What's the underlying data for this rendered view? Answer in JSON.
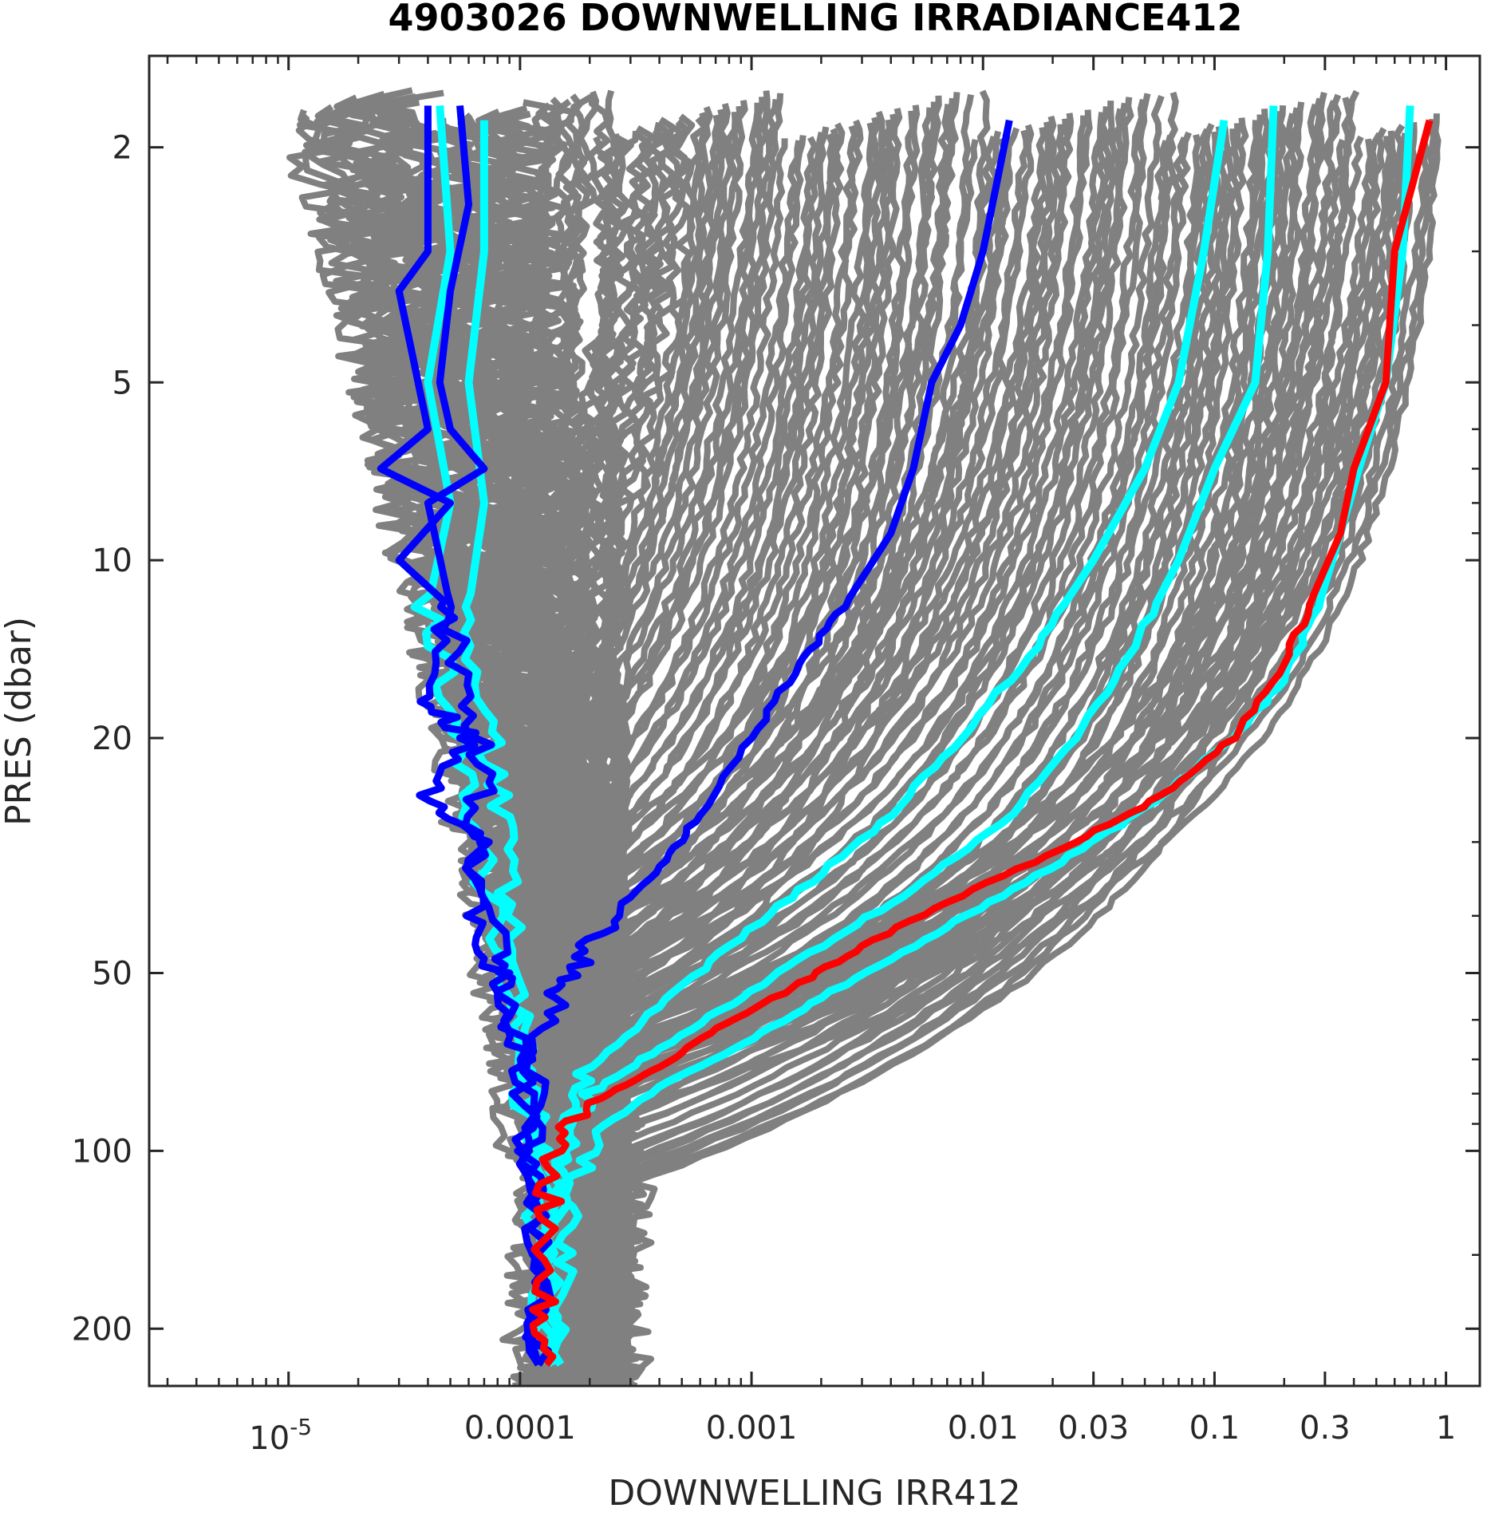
{
  "chart_data": {
    "type": "line",
    "title": "4903026  DOWNWELLING IRRADIANCE412",
    "xlabel": "DOWNWELLING IRR412",
    "ylabel": "PRES (dbar)",
    "x_scale": "log",
    "y_scale": "log",
    "y_reversed": true,
    "xlim": [
      2.5e-06,
      1.4
    ],
    "ylim": [
      1.4,
      250
    ],
    "grid": false,
    "x_ticks": [
      {
        "value": 1e-05,
        "base": "10",
        "exp": "-5"
      },
      {
        "value": 0.0001,
        "label": "0.0001"
      },
      {
        "value": 0.001,
        "label": "0.001"
      },
      {
        "value": 0.01,
        "label": "0.01"
      },
      {
        "value": 0.03,
        "label": "0.03"
      },
      {
        "value": 0.1,
        "label": "0.1"
      },
      {
        "value": 0.3,
        "label": "0.3"
      },
      {
        "value": 1,
        "label": "1"
      }
    ],
    "y_ticks": [
      {
        "value": 2,
        "label": "2"
      },
      {
        "value": 5,
        "label": "5"
      },
      {
        "value": 10,
        "label": "10"
      },
      {
        "value": 20,
        "label": "20"
      },
      {
        "value": 50,
        "label": "50"
      },
      {
        "value": 100,
        "label": "100"
      },
      {
        "value": 200,
        "label": "200"
      }
    ],
    "colors": {
      "background_profiles": "#808080",
      "selected_profiles": "#00ffff",
      "highlight_profile": "#0000ff",
      "current_profile": "#ff0000"
    },
    "series": [
      {
        "role": "current",
        "color": "#ff0000",
        "surface_value": 0.85,
        "deep_value": 0.00013,
        "points": [
          [
            0.85,
            1.8
          ],
          [
            0.6,
            3
          ],
          [
            0.55,
            5
          ],
          [
            0.4,
            7
          ],
          [
            0.35,
            9
          ],
          [
            0.28,
            11
          ],
          [
            0.2,
            15
          ],
          [
            0.12,
            20
          ],
          [
            0.06,
            25
          ],
          [
            0.025,
            30
          ],
          [
            0.008,
            37
          ],
          [
            0.003,
            45
          ],
          [
            0.0015,
            53
          ],
          [
            0.0007,
            62
          ],
          [
            0.0004,
            72
          ],
          [
            0.0002,
            83
          ],
          [
            0.00014,
            100
          ],
          [
            0.00013,
            130
          ],
          [
            0.00013,
            180
          ],
          [
            0.00013,
            230
          ]
        ]
      },
      {
        "role": "highlight",
        "color": "#0000ff",
        "surface_value": 0.013,
        "deep_value": 0.00012,
        "points": [
          [
            0.013,
            1.8
          ],
          [
            0.01,
            3
          ],
          [
            0.008,
            4
          ],
          [
            0.006,
            5
          ],
          [
            0.005,
            7
          ],
          [
            0.004,
            9
          ],
          [
            0.0025,
            12
          ],
          [
            0.0016,
            15
          ],
          [
            0.001,
            20
          ],
          [
            0.0006,
            27
          ],
          [
            0.0004,
            33
          ],
          [
            0.00025,
            40
          ],
          [
            0.00018,
            48
          ],
          [
            0.00014,
            55
          ],
          [
            0.00012,
            70
          ],
          [
            0.00011,
            100
          ],
          [
            0.00012,
            150
          ],
          [
            0.00012,
            230
          ]
        ]
      },
      {
        "role": "highlight",
        "color": "#0000ff",
        "surface_value": 4e-05,
        "deep_value": 0.00012,
        "points": [
          [
            4e-05,
            1.7
          ],
          [
            4e-05,
            3
          ],
          [
            3e-05,
            3.5
          ],
          [
            4e-05,
            6
          ],
          [
            2.5e-05,
            7
          ],
          [
            5e-05,
            8
          ],
          [
            3e-05,
            10
          ],
          [
            5e-05,
            12
          ],
          [
            4e-05,
            17
          ],
          [
            6e-05,
            20
          ],
          [
            4e-05,
            25
          ],
          [
            7e-05,
            30
          ],
          [
            6e-05,
            40
          ],
          [
            8e-05,
            50
          ],
          [
            0.0001,
            70
          ],
          [
            0.00011,
            100
          ],
          [
            0.00012,
            150
          ],
          [
            0.00012,
            230
          ]
        ]
      },
      {
        "role": "highlight",
        "color": "#0000ff",
        "surface_value": 5.5e-05,
        "deep_value": 0.00012,
        "points": [
          [
            5.5e-05,
            1.7
          ],
          [
            6e-05,
            2.5
          ],
          [
            5e-05,
            3.5
          ],
          [
            4.5e-05,
            5
          ],
          [
            5e-05,
            6
          ],
          [
            7e-05,
            7
          ],
          [
            4e-05,
            8
          ],
          [
            5e-05,
            12
          ],
          [
            6e-05,
            17
          ],
          [
            7e-05,
            23
          ],
          [
            6e-05,
            30
          ],
          [
            8e-05,
            45
          ],
          [
            9e-05,
            55
          ],
          [
            0.0001,
            70
          ],
          [
            0.00011,
            100
          ],
          [
            0.00012,
            150
          ],
          [
            0.00012,
            230
          ]
        ]
      },
      {
        "role": "selected",
        "color": "#00ffff",
        "surface_value": 0.18,
        "deep_value": 0.00014,
        "points": [
          [
            0.18,
            1.7
          ],
          [
            0.17,
            3
          ],
          [
            0.15,
            5
          ],
          [
            0.1,
            7
          ],
          [
            0.07,
            10
          ],
          [
            0.045,
            14
          ],
          [
            0.025,
            20
          ],
          [
            0.012,
            28
          ],
          [
            0.005,
            36
          ],
          [
            0.002,
            45
          ],
          [
            0.0009,
            55
          ],
          [
            0.0004,
            67
          ],
          [
            0.0002,
            80
          ],
          [
            0.00015,
            100
          ],
          [
            0.00014,
            140
          ],
          [
            0.00014,
            230
          ]
        ]
      },
      {
        "role": "selected",
        "color": "#00ffff",
        "surface_value": 0.11,
        "deep_value": 0.00014,
        "points": [
          [
            0.11,
            1.8
          ],
          [
            0.09,
            3
          ],
          [
            0.07,
            5
          ],
          [
            0.05,
            7
          ],
          [
            0.03,
            10
          ],
          [
            0.017,
            14
          ],
          [
            0.008,
            20
          ],
          [
            0.004,
            27
          ],
          [
            0.0018,
            35
          ],
          [
            0.0008,
            45
          ],
          [
            0.0004,
            57
          ],
          [
            0.0002,
            72
          ],
          [
            0.00015,
            90
          ],
          [
            0.00014,
            130
          ],
          [
            0.00014,
            230
          ]
        ]
      },
      {
        "role": "selected",
        "color": "#00ffff",
        "surface_value": 0.7,
        "deep_value": 0.00015,
        "points": [
          [
            0.7,
            1.7
          ],
          [
            0.65,
            3
          ],
          [
            0.55,
            5
          ],
          [
            0.42,
            7
          ],
          [
            0.35,
            9
          ],
          [
            0.28,
            12
          ],
          [
            0.2,
            16
          ],
          [
            0.12,
            20
          ],
          [
            0.06,
            25
          ],
          [
            0.03,
            30
          ],
          [
            0.012,
            37
          ],
          [
            0.005,
            45
          ],
          [
            0.002,
            55
          ],
          [
            0.0009,
            66
          ],
          [
            0.0004,
            78
          ],
          [
            0.0002,
            95
          ],
          [
            0.00016,
            120
          ],
          [
            0.00015,
            160
          ],
          [
            0.00015,
            230
          ]
        ]
      },
      {
        "role": "selected",
        "color": "#00ffff",
        "surface_value": 4.5e-05,
        "deep_value": 0.00013,
        "points": [
          [
            4.5e-05,
            1.7
          ],
          [
            5e-05,
            3
          ],
          [
            4e-05,
            5
          ],
          [
            5e-05,
            8
          ],
          [
            4e-05,
            12
          ],
          [
            5e-05,
            18
          ],
          [
            6e-05,
            25
          ],
          [
            7e-05,
            35
          ],
          [
            9e-05,
            50
          ],
          [
            0.0001,
            70
          ],
          [
            0.00011,
            100
          ],
          [
            0.00012,
            150
          ],
          [
            0.00013,
            230
          ]
        ]
      },
      {
        "role": "selected",
        "color": "#00ffff",
        "surface_value": 7e-05,
        "deep_value": 0.00014,
        "points": [
          [
            7e-05,
            1.8
          ],
          [
            7e-05,
            3
          ],
          [
            6e-05,
            5
          ],
          [
            7e-05,
            8
          ],
          [
            6e-05,
            12
          ],
          [
            7e-05,
            18
          ],
          [
            8e-05,
            25
          ],
          [
            9e-05,
            35
          ],
          [
            0.0001,
            50
          ],
          [
            0.00011,
            70
          ],
          [
            0.00012,
            100
          ],
          [
            0.00013,
            150
          ],
          [
            0.00014,
            230
          ]
        ]
      }
    ]
  }
}
